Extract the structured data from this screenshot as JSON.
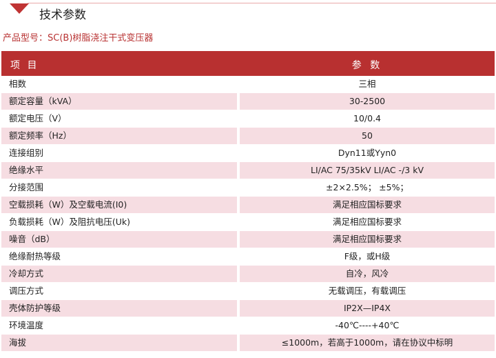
{
  "section_title": "技术参数",
  "product_model": "产品型号：SC(B)树脂浇注干式变压器",
  "colors": {
    "accent": "#b83030",
    "row_alt": "#f6dde2"
  },
  "table": {
    "headers": [
      "项 目",
      "参 数"
    ],
    "rows": [
      [
        "相数",
        "三相"
      ],
      [
        "额定容量（kVA）",
        "30-2500"
      ],
      [
        "额定电压（V）",
        "10/0.4"
      ],
      [
        "额定频率（Hz）",
        "50"
      ],
      [
        "连接组别",
        "Dyn11或Yyn0"
      ],
      [
        "绝缘水平",
        "LI/AC 75/35kV  LI/AC -/3 kV"
      ],
      [
        "分接范围",
        "±2×2.5%；  ±5%；"
      ],
      [
        "空载损耗（W）及空载电流(I0)",
        "满足相应国标要求"
      ],
      [
        "负载损耗（W）及阻抗电压(Uk)",
        "满足相应国标要求"
      ],
      [
        "噪音（dB）",
        "满足相应国标要求"
      ],
      [
        "绝缘耐热等级",
        "F级，或H级"
      ],
      [
        "冷却方式",
        "自冷，风冷"
      ],
      [
        "调压方式",
        "无载调压，有载调压"
      ],
      [
        "壳体防护等级",
        "IP2X—IP4X"
      ],
      [
        "环境温度",
        "-40℃----+40℃"
      ],
      [
        "海拔",
        "≤1000m，若高于1000m，请在协议中标明"
      ]
    ]
  }
}
